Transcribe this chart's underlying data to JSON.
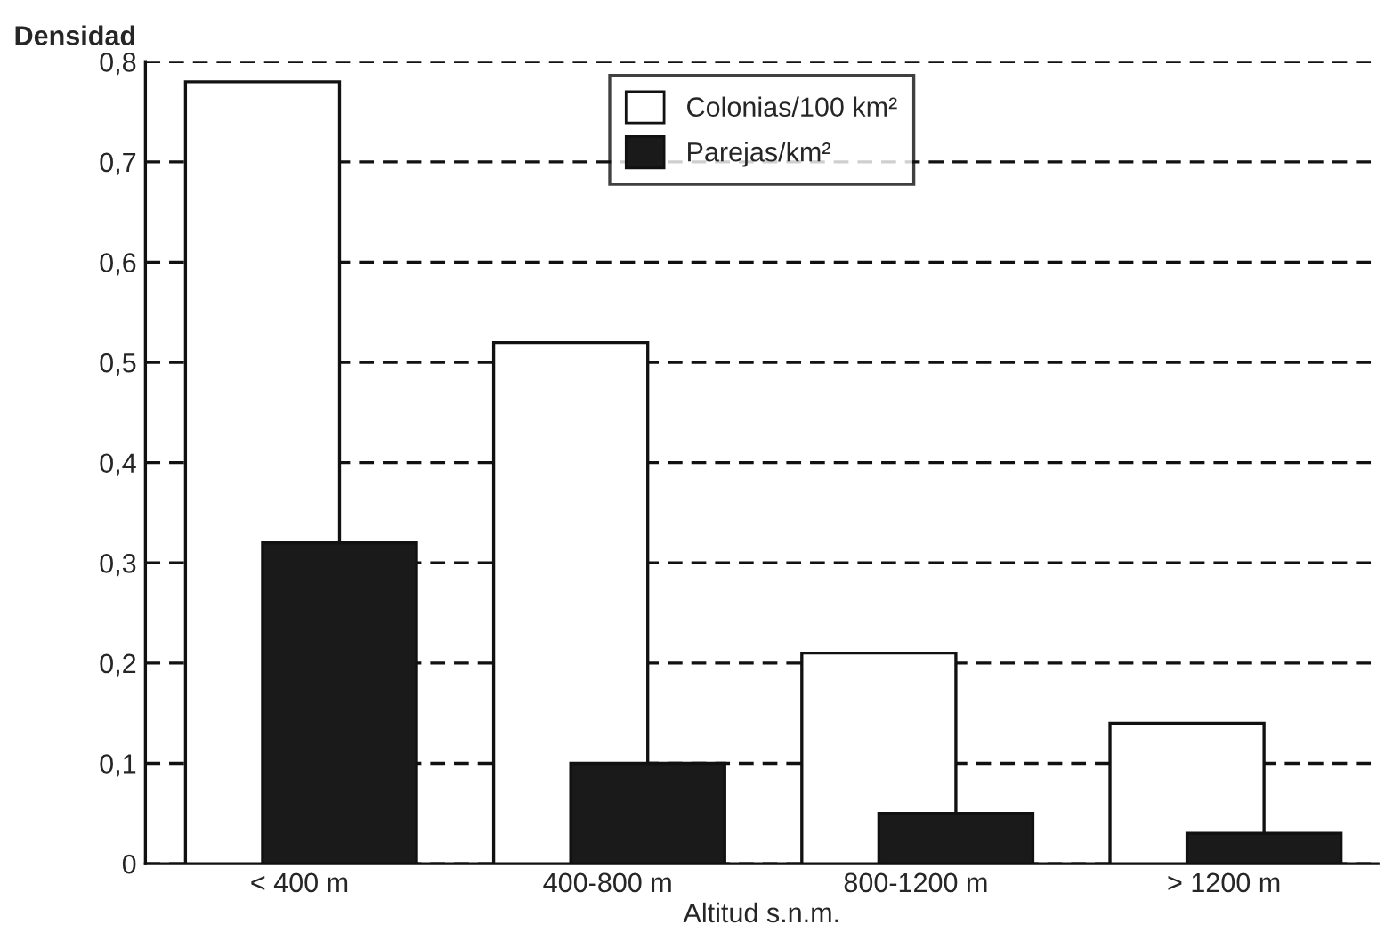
{
  "chart_data": {
    "type": "bar",
    "ylabel": "Densidad",
    "xlabel": "Altitud s.n.m.",
    "categories": [
      "< 400 m",
      "400-800 m",
      "800-1200 m",
      "> 1200 m"
    ],
    "series": [
      {
        "name": "Colonias/100 km²",
        "color": "#ffffff",
        "values": [
          0.78,
          0.52,
          0.21,
          0.14
        ]
      },
      {
        "name": "Parejas/km²",
        "color": "#1a1a1a",
        "values": [
          0.32,
          0.1,
          0.05,
          0.03
        ]
      }
    ],
    "ylim": [
      0,
      0.8
    ],
    "yticks": [
      {
        "value": 0,
        "label": "0"
      },
      {
        "value": 0.1,
        "label": "0,1"
      },
      {
        "value": 0.2,
        "label": "0,2"
      },
      {
        "value": 0.3,
        "label": "0,3"
      },
      {
        "value": 0.4,
        "label": "0,4"
      },
      {
        "value": 0.5,
        "label": "0,5"
      },
      {
        "value": 0.6,
        "label": "0,6"
      },
      {
        "value": 0.7,
        "label": "0,7"
      },
      {
        "value": 0.8,
        "label": "0,8"
      }
    ],
    "grid": "y",
    "legend": "top"
  }
}
